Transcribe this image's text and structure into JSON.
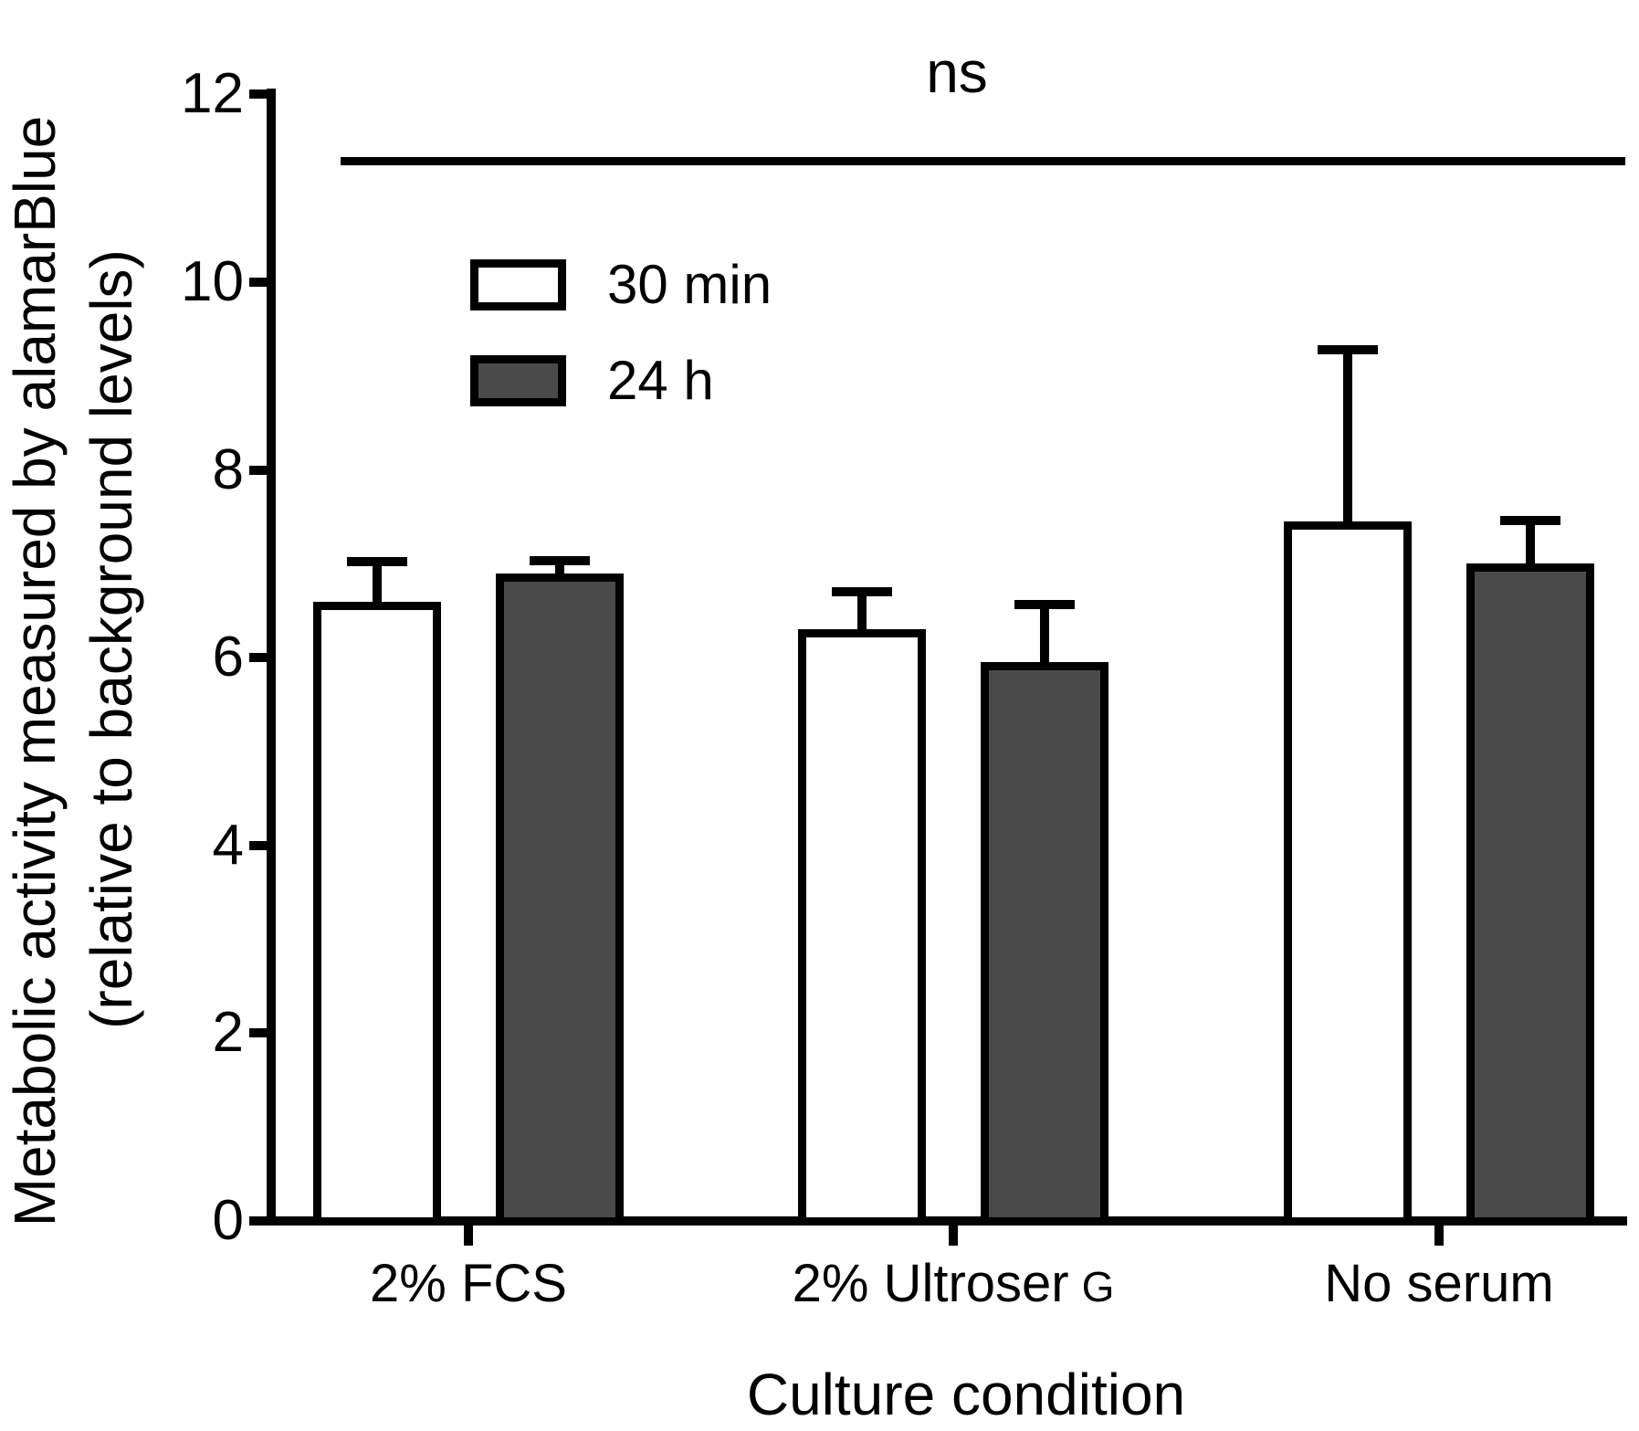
{
  "figure": {
    "background": "#ffffff",
    "text_color": "#000000"
  },
  "chart_data": {
    "type": "bar",
    "title": "",
    "xlabel": "Culture condition",
    "ylabel_line1": "Metabolic activity measured by alamarBlue",
    "ylabel_line2": "(relative to background levels)",
    "ylim": [
      0,
      12
    ],
    "yticks": [
      0,
      2,
      4,
      6,
      8,
      10,
      12
    ],
    "grid": false,
    "legend_position": "upper-left-inside",
    "annotation": {
      "text": "ns",
      "spans": "all categories",
      "line": true
    },
    "categories": [
      {
        "label": "2% FCS",
        "small_suffix": ""
      },
      {
        "label": "2% Ultroser",
        "small_suffix": "G"
      },
      {
        "label": "No serum",
        "small_suffix": ""
      }
    ],
    "series": [
      {
        "name": "30 min",
        "fill": "#ffffff",
        "stroke": "#000000",
        "values": [
          6.6,
          6.3,
          7.45
        ],
        "errors_plus": [
          0.37,
          0.35,
          1.78
        ]
      },
      {
        "name": "24 h",
        "fill": "#4a4a4a",
        "stroke": "#000000",
        "values": [
          6.9,
          5.95,
          7.0
        ],
        "errors_plus": [
          0.08,
          0.57,
          0.41
        ]
      }
    ],
    "error_bars": "plus-only"
  }
}
